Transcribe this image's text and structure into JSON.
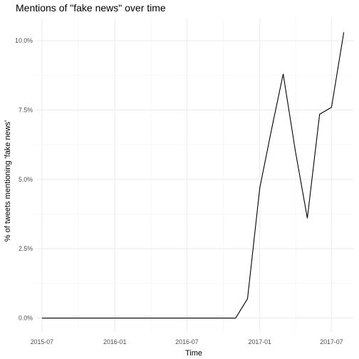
{
  "chart_data": {
    "type": "line",
    "title": "Mentions of \"fake news\" over time",
    "xlabel": "Time",
    "ylabel": "% of tweets mentioning 'fake news'",
    "x_ticks": [
      "2015-07",
      "2016-01",
      "2016-07",
      "2017-01",
      "2017-07"
    ],
    "x_range": [
      "2015-06-15",
      "2017-08-25"
    ],
    "y_ticks": [
      "0.0%",
      "2.5%",
      "5.0%",
      "7.5%",
      "10.0%"
    ],
    "y_tick_values": [
      0,
      2.5,
      5,
      7.5,
      10
    ],
    "ylim": [
      -0.5,
      10.8
    ],
    "grid": true,
    "series": [
      {
        "x": [
          "2015-07-01",
          "2015-08-01",
          "2015-09-01",
          "2015-10-01",
          "2015-11-01",
          "2015-12-01",
          "2016-01-01",
          "2016-02-01",
          "2016-03-01",
          "2016-04-01",
          "2016-05-01",
          "2016-06-01",
          "2016-07-01",
          "2016-08-01",
          "2016-09-01",
          "2016-10-01",
          "2016-11-01",
          "2016-12-01",
          "2017-01-01",
          "2017-02-01",
          "2017-03-01",
          "2017-04-01",
          "2017-05-01",
          "2017-06-01",
          "2017-07-01",
          "2017-08-01"
        ],
        "y": [
          0,
          0,
          0,
          0,
          0,
          0,
          0,
          0,
          0,
          0,
          0,
          0,
          0,
          0,
          0,
          0,
          0,
          0.7,
          4.7,
          6.9,
          8.8,
          6.0,
          3.6,
          7.35,
          7.6,
          10.3
        ]
      }
    ]
  }
}
